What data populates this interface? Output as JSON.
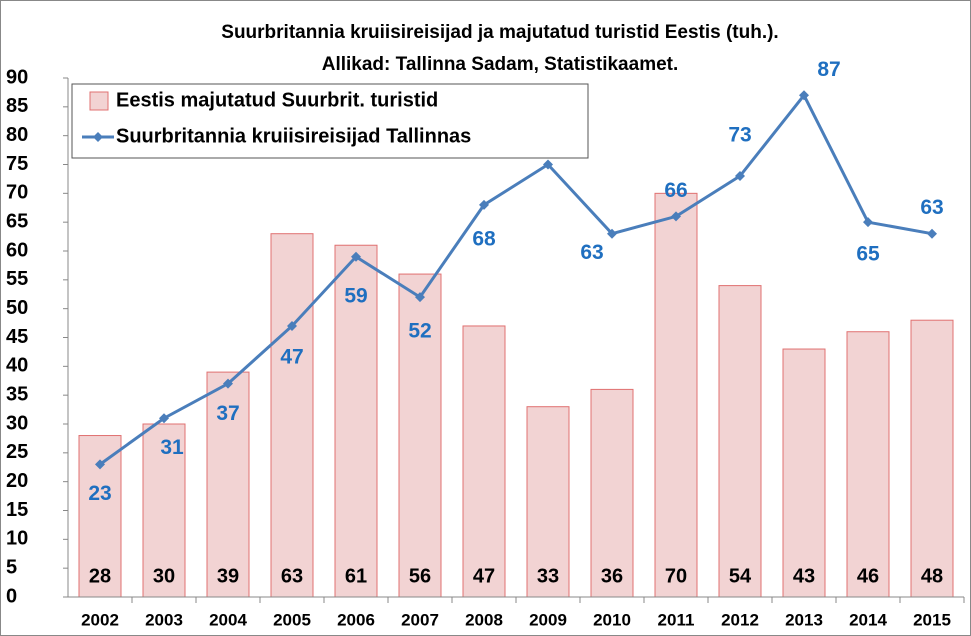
{
  "chart_data": {
    "type": "bar_line",
    "title": "Suurbritannia kruiisireisijad  ja majutatud turistid Eestis (tuh.).",
    "subtitle": "Allikad: Tallinna Sadam, Statistikaamet.",
    "categories": [
      "2002",
      "2003",
      "2004",
      "2005",
      "2006",
      "2007",
      "2008",
      "2009",
      "2010",
      "2011",
      "2012",
      "2013",
      "2014",
      "2015"
    ],
    "series": [
      {
        "name": "Eestis majutatud Suurbrit. turistid",
        "type": "bar",
        "color": "#f2d3d3",
        "edge": "#e07070",
        "values": [
          28,
          30,
          39,
          63,
          61,
          56,
          47,
          33,
          36,
          70,
          54,
          43,
          46,
          48
        ]
      },
      {
        "name": "Suurbritannia kruiisireisijad Tallinnas",
        "type": "line",
        "color": "#4a7ebb",
        "label_color": "#1f6fc0",
        "values": [
          23,
          31,
          37,
          47,
          59,
          52,
          68,
          75,
          63,
          66,
          73,
          87,
          65,
          63
        ]
      }
    ],
    "ylim": [
      0,
      90
    ],
    "yticks": [
      0,
      5,
      10,
      15,
      20,
      25,
      30,
      35,
      40,
      45,
      50,
      55,
      60,
      65,
      70,
      75,
      80,
      85,
      90
    ],
    "grid": false,
    "legend": "top-left"
  }
}
